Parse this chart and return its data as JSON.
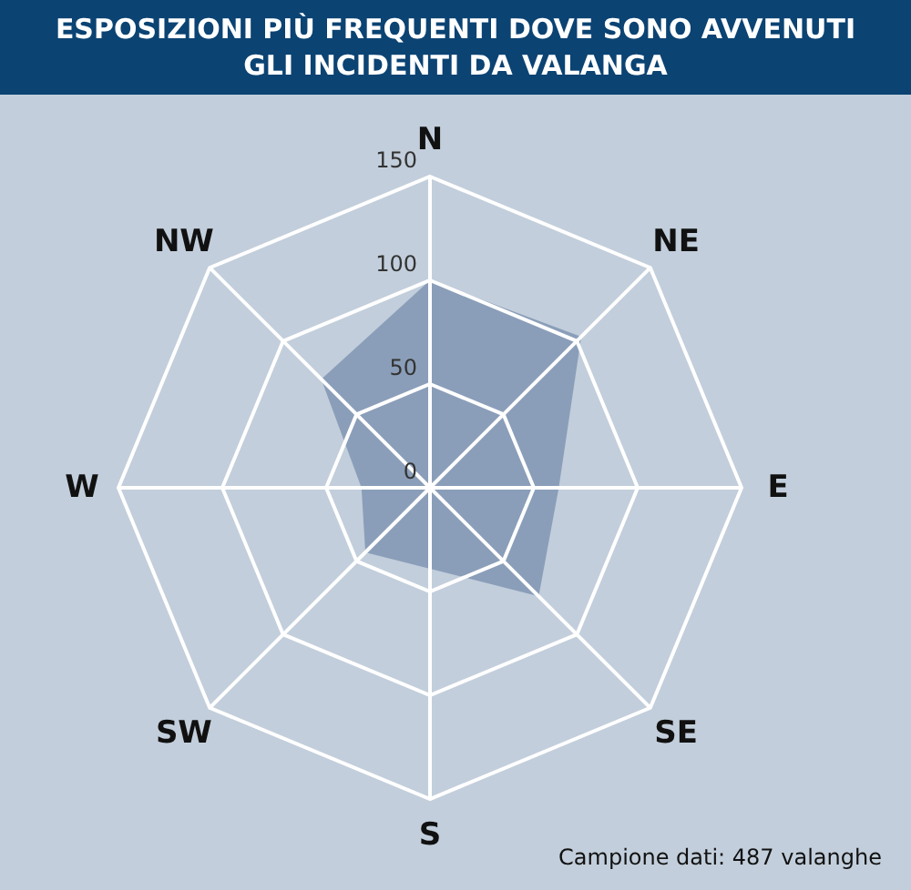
{
  "chart_data": {
    "type": "radar",
    "title": "ESPOSIZIONI PIÙ FREQUENTI DOVE SONO AVVENUTI\nGLI INCIDENTI DA VALANGA",
    "categories": [
      "N",
      "NE",
      "E",
      "SE",
      "S",
      "SW",
      "W",
      "NW"
    ],
    "series": [
      {
        "color": "#8499b5",
        "values": [
          100,
          103,
          62,
          74,
          39,
          44,
          33,
          74
        ]
      }
    ],
    "ylim": [
      0,
      150
    ],
    "yticks": [
      0,
      50,
      100,
      150
    ],
    "grid": true,
    "annotations": [
      "Campione dati: 487 valanghe"
    ]
  }
}
